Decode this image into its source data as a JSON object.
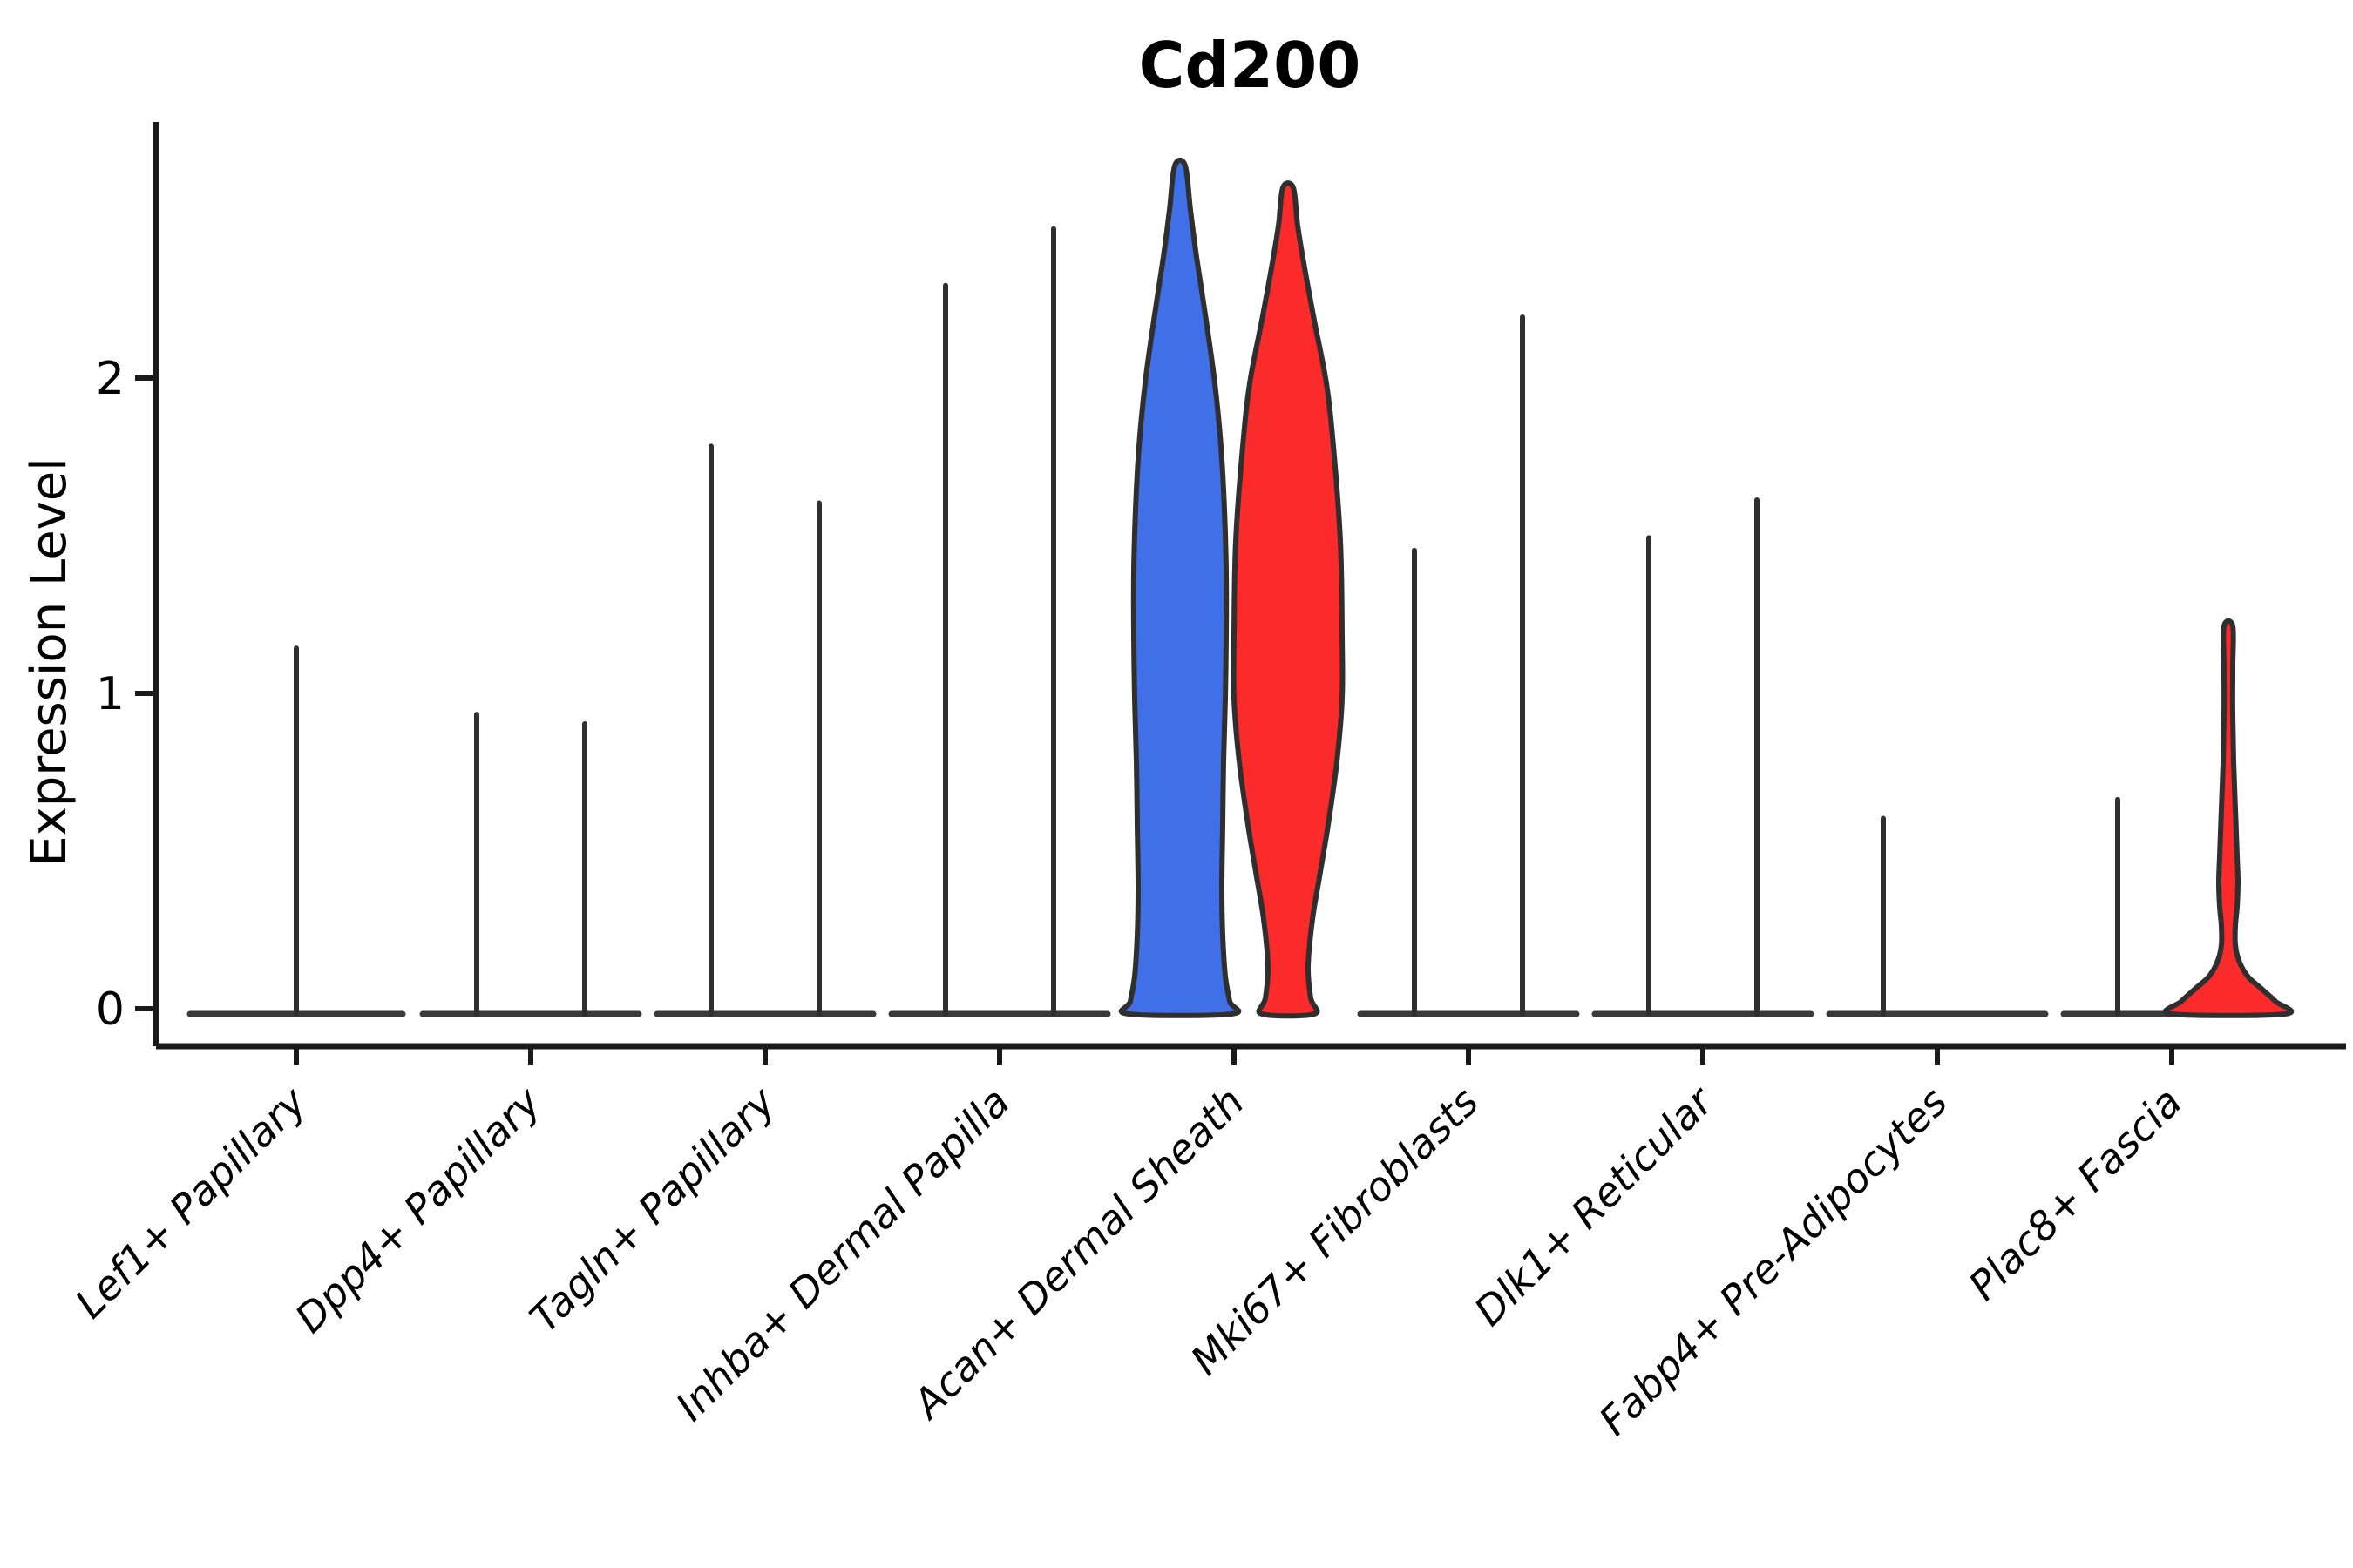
{
  "chart_data": {
    "type": "violin",
    "title": "Cd200",
    "ylabel": "Expression Level",
    "xlabel": "",
    "ylim": [
      0,
      2.85
    ],
    "grid": false,
    "legend": "none",
    "ytick_values": [
      0,
      1,
      2
    ],
    "ytick_labels": [
      "0",
      "1",
      "2"
    ],
    "groups": [
      {
        "id": "blue",
        "color": "#4070e8"
      },
      {
        "id": "red",
        "color": "#fb2b2b"
      }
    ],
    "outline_color": "#2f2f2f",
    "line_color": "#3a3a3a",
    "axis_color": "#1a1a1a",
    "categories": [
      {
        "label": "Lef1+ Papillary",
        "violins": [
          {
            "group": "none",
            "shape": "spike",
            "slot": "center",
            "peak": 1.16
          }
        ]
      },
      {
        "label": "Dpp4+ Papillary",
        "violins": [
          {
            "group": "blue",
            "shape": "spike",
            "slot": "left",
            "peak": 0.95
          },
          {
            "group": "red",
            "shape": "spike",
            "slot": "right",
            "peak": 0.92
          }
        ]
      },
      {
        "label": "Tagln+ Papillary",
        "violins": [
          {
            "group": "blue",
            "shape": "spike",
            "slot": "left",
            "peak": 1.8
          },
          {
            "group": "red",
            "shape": "spike",
            "slot": "right",
            "peak": 1.62
          }
        ]
      },
      {
        "label": "Inhba+ Dermal Papilla",
        "violins": [
          {
            "group": "blue",
            "shape": "spike",
            "slot": "left",
            "peak": 2.31
          },
          {
            "group": "red",
            "shape": "spike",
            "slot": "right",
            "peak": 2.49
          }
        ]
      },
      {
        "label": "Acan+ Dermal Sheath",
        "violins": [
          {
            "group": "blue",
            "shape": "violin",
            "slot": "left",
            "peak": 2.69,
            "profile": [
              [
                2.69,
                6
              ],
              [
                2.55,
                12
              ],
              [
                2.4,
                19
              ],
              [
                2.2,
                30
              ],
              [
                2.0,
                40
              ],
              [
                1.8,
                47
              ],
              [
                1.6,
                51
              ],
              [
                1.4,
                53
              ],
              [
                1.2,
                53
              ],
              [
                1.0,
                52
              ],
              [
                0.8,
                50
              ],
              [
                0.6,
                49
              ],
              [
                0.4,
                48
              ],
              [
                0.25,
                49
              ],
              [
                0.12,
                52
              ],
              [
                0.04,
                57
              ],
              [
                0.0,
                59
              ]
            ]
          },
          {
            "group": "red",
            "shape": "violin",
            "slot": "right",
            "peak": 2.62,
            "profile": [
              [
                2.62,
                6
              ],
              [
                2.5,
                11
              ],
              [
                2.35,
                20
              ],
              [
                2.2,
                30
              ],
              [
                2.0,
                44
              ],
              [
                1.8,
                52
              ],
              [
                1.5,
                60
              ],
              [
                1.2,
                62
              ],
              [
                1.0,
                62
              ],
              [
                0.8,
                56
              ],
              [
                0.6,
                46
              ],
              [
                0.45,
                37
              ],
              [
                0.3,
                28
              ],
              [
                0.15,
                23
              ],
              [
                0.05,
                26
              ],
              [
                0.0,
                30
              ]
            ]
          }
        ]
      },
      {
        "label": "Mki67+ Fibroblasts",
        "violins": [
          {
            "group": "blue",
            "shape": "spike",
            "slot": "left",
            "peak": 1.47
          },
          {
            "group": "red",
            "shape": "spike",
            "slot": "right",
            "peak": 2.21
          }
        ]
      },
      {
        "label": "Dlk1+ Reticular",
        "violins": [
          {
            "group": "blue",
            "shape": "spike",
            "slot": "left",
            "peak": 1.51
          },
          {
            "group": "red",
            "shape": "spike",
            "slot": "right",
            "peak": 1.63
          }
        ]
      },
      {
        "label": "Fabp4+ Pre-Adipocytes",
        "violins": [
          {
            "group": "blue",
            "shape": "spike",
            "slot": "left",
            "peak": 0.62
          },
          {
            "group": "red",
            "shape": "flat",
            "slot": "right"
          }
        ]
      },
      {
        "label": "Plac8+ Fascia",
        "violins": [
          {
            "group": "blue",
            "shape": "spike",
            "slot": "left",
            "peak": 0.68
          },
          {
            "group": "red",
            "shape": "violin",
            "slot": "right",
            "peak": 1.23,
            "offset": 65,
            "profile": [
              [
                1.23,
                5
              ],
              [
                1.1,
                5
              ],
              [
                0.95,
                5
              ],
              [
                0.8,
                6
              ],
              [
                0.65,
                8
              ],
              [
                0.5,
                10
              ],
              [
                0.42,
                11
              ],
              [
                0.34,
                10
              ],
              [
                0.28,
                8
              ],
              [
                0.22,
                8
              ],
              [
                0.17,
                12
              ],
              [
                0.12,
                22
              ],
              [
                0.08,
                38
              ],
              [
                0.04,
                54
              ],
              [
                0.0,
                65
              ]
            ]
          }
        ]
      }
    ]
  }
}
